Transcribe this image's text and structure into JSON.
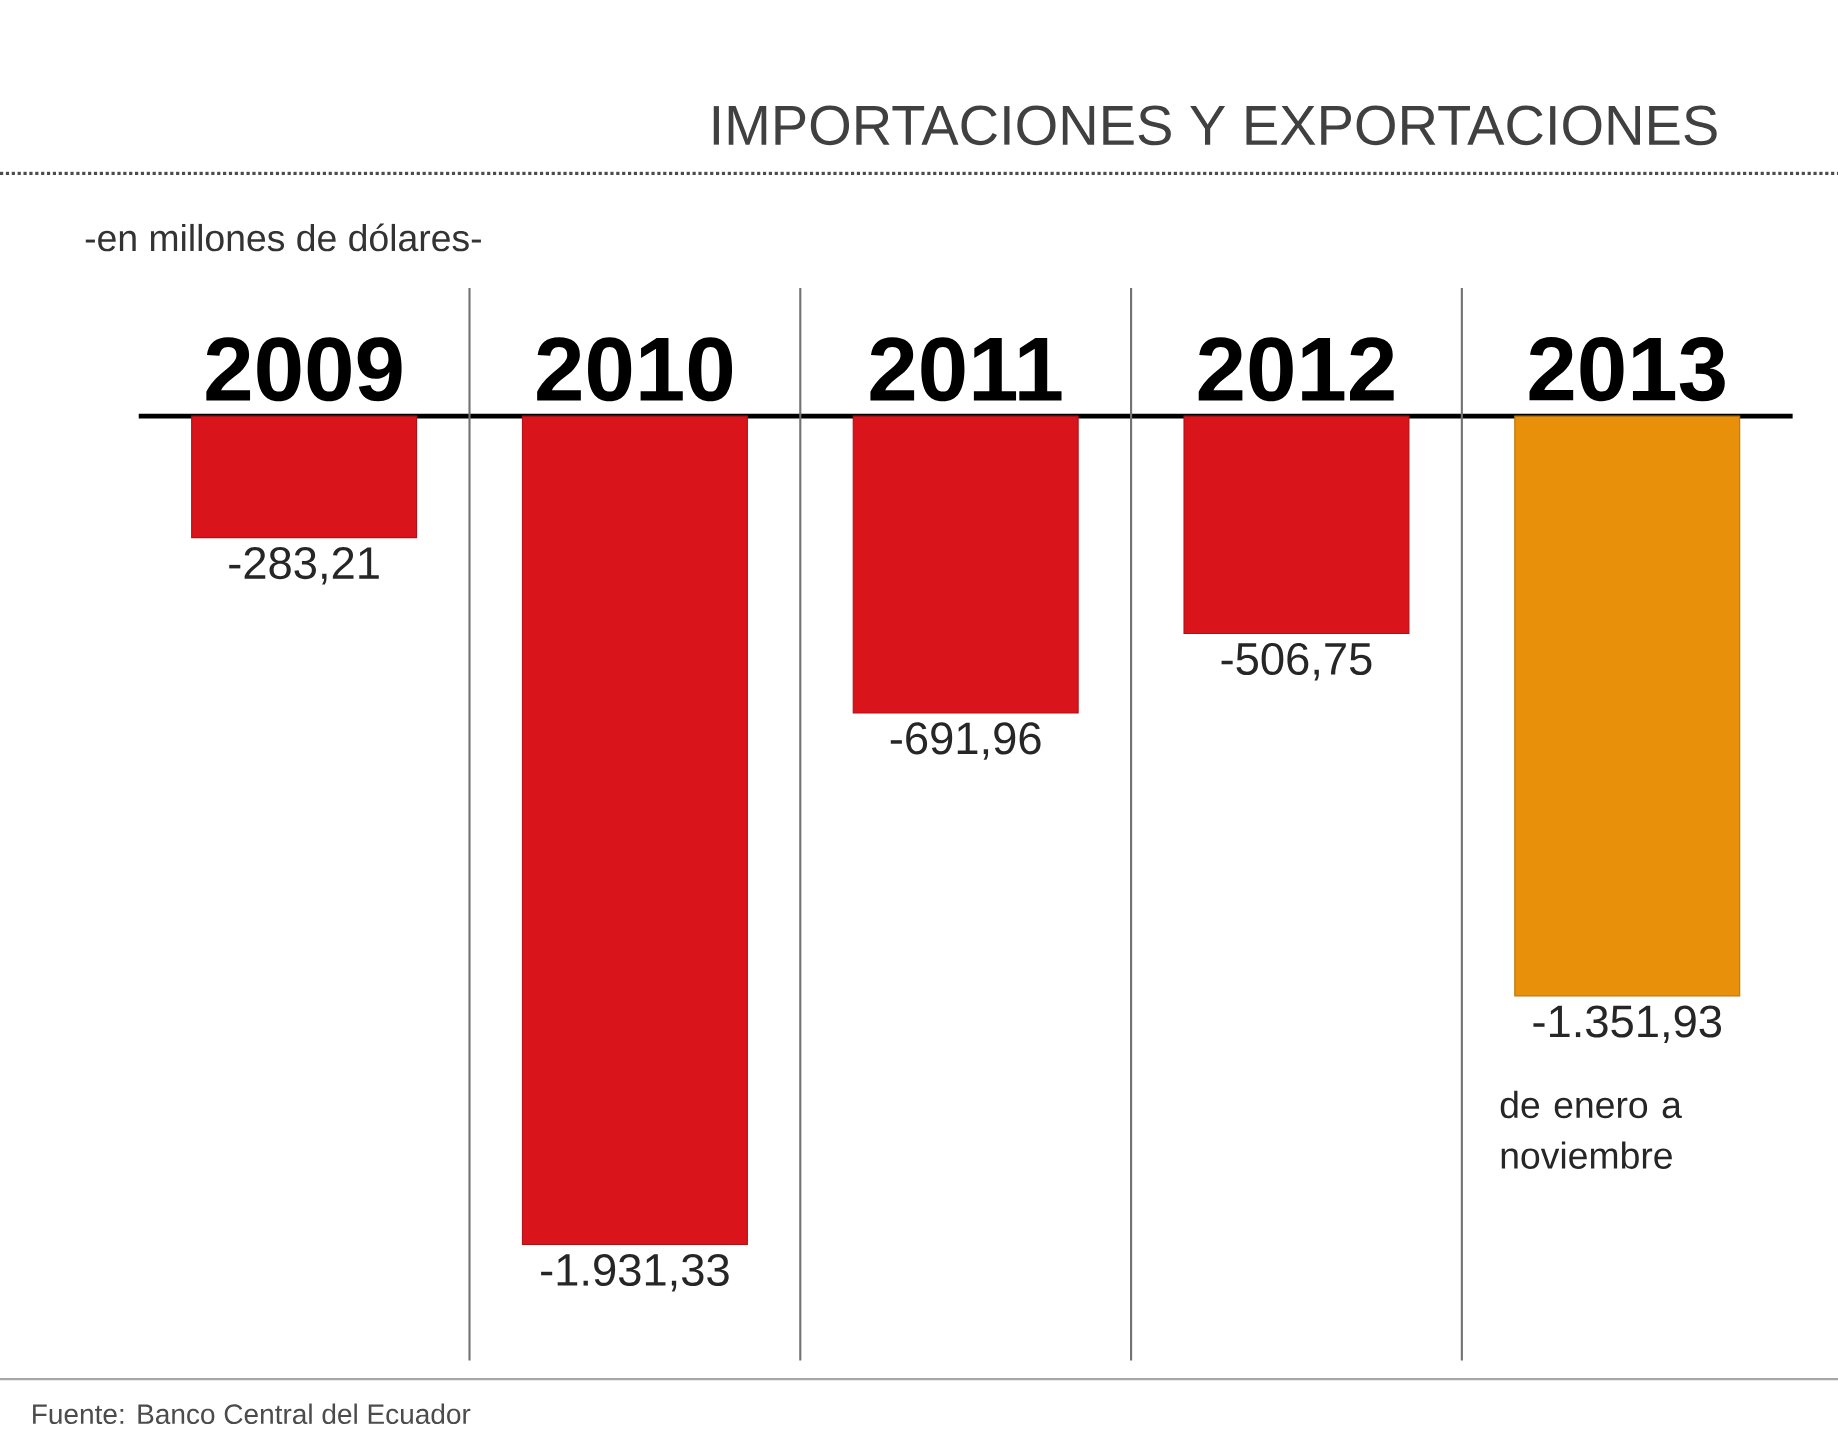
{
  "chart_data": {
    "type": "bar",
    "title": "IMPORTACIONES Y EXPORTACIONES",
    "subtitle": "-en millones de dólares-",
    "categories": [
      "2009",
      "2010",
      "2011",
      "2012",
      "2013"
    ],
    "values": [
      -283.21,
      -1931.33,
      -691.96,
      -506.75,
      -1351.93
    ],
    "colors": [
      "#d9141b",
      "#d9141b",
      "#d9141b",
      "#d9141b",
      "#e8900a"
    ],
    "value_labels": [
      "-283,21",
      "-1.931,33",
      "-691,96",
      "-506,75",
      "-1.351,93"
    ],
    "annotations": [
      "de enero a noviembre",
      "Fuente: Banco Central del Ecuador"
    ]
  }
}
